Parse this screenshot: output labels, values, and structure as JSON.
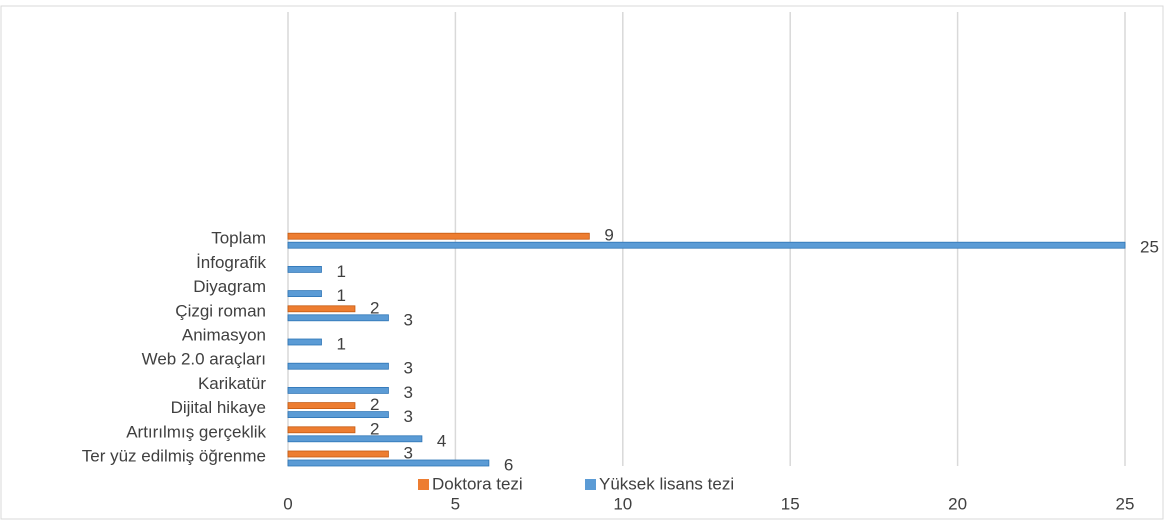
{
  "chart_data": {
    "type": "bar",
    "orientation": "horizontal",
    "categories": [
      "Ter yüz edilmiş öğrenme",
      "Artırılmış gerçeklik",
      "Dijital hikaye",
      "Karikatür",
      "Web 2.0 araçları",
      "Animasyon",
      "Çizgi roman",
      "Diyagram",
      "İnfografik",
      "Toplam"
    ],
    "series": [
      {
        "name": "Doktora tezi",
        "color": "#ED7D31",
        "values": [
          3,
          2,
          2,
          null,
          null,
          null,
          2,
          null,
          null,
          9
        ]
      },
      {
        "name": "Yüksek lisans tezi",
        "color": "#5B9BD5",
        "values": [
          6,
          4,
          3,
          3,
          3,
          1,
          3,
          1,
          1,
          25
        ]
      }
    ],
    "xlim": [
      0,
      25
    ],
    "xticks": [
      0,
      5,
      10,
      15,
      20,
      25
    ],
    "grid": true,
    "legend": "bottom"
  }
}
